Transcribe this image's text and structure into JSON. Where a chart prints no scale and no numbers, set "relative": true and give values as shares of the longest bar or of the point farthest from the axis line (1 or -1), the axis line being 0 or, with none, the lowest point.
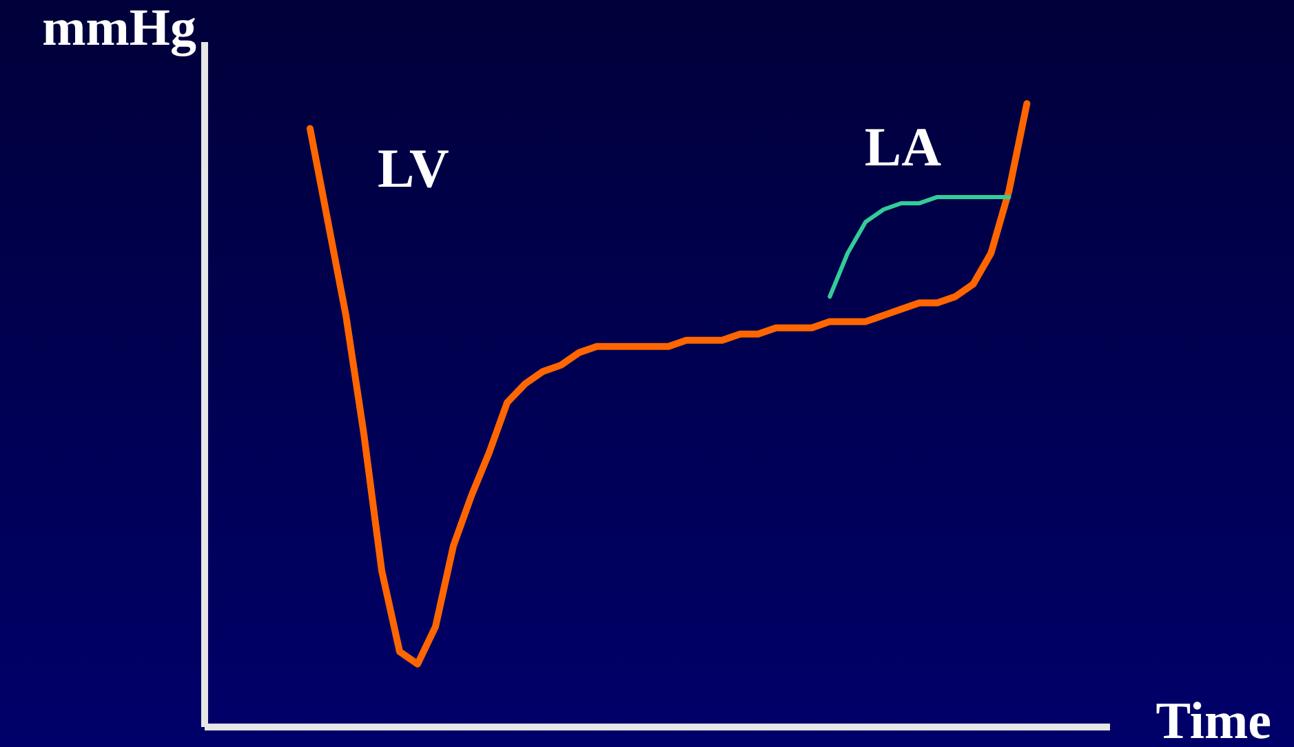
{
  "chart_data": {
    "type": "line",
    "relative": true,
    "xlabel": "Time",
    "ylabel": "mmHg",
    "marker": "none",
    "grid": false,
    "categories": [
      null,
      null,
      null,
      null,
      null,
      null,
      null,
      null,
      null,
      null,
      null,
      null,
      null,
      null,
      null,
      null,
      null,
      null,
      null,
      null,
      null,
      null,
      null,
      null,
      null,
      null,
      null,
      null,
      null,
      null,
      null,
      null,
      null,
      null,
      null,
      null,
      null,
      null,
      null,
      null,
      null
    ],
    "series": [
      {
        "name": "LV",
        "color": "#ff6600",
        "values": [
          0.96,
          0.81,
          0.66,
          0.47,
          0.25,
          0.12,
          0.1,
          0.16,
          0.29,
          0.37,
          0.44,
          0.52,
          0.55,
          0.57,
          0.58,
          0.6,
          0.61,
          0.61,
          0.61,
          0.61,
          0.61,
          0.62,
          0.62,
          0.62,
          0.63,
          0.63,
          0.64,
          0.64,
          0.64,
          0.65,
          0.65,
          0.65,
          0.66,
          0.67,
          0.68,
          0.68,
          0.69,
          0.71,
          0.76,
          0.86,
          1
        ]
      },
      {
        "name": "LA",
        "color": "#33cc99",
        "values": [
          null,
          null,
          null,
          null,
          null,
          null,
          null,
          null,
          null,
          null,
          null,
          null,
          null,
          null,
          null,
          null,
          null,
          null,
          null,
          null,
          null,
          null,
          null,
          null,
          null,
          null,
          null,
          null,
          null,
          0.69,
          0.76,
          0.81,
          0.83,
          0.84,
          0.84,
          0.85,
          0.85,
          0.85,
          0.85,
          0.85,
          null
        ]
      }
    ]
  }
}
